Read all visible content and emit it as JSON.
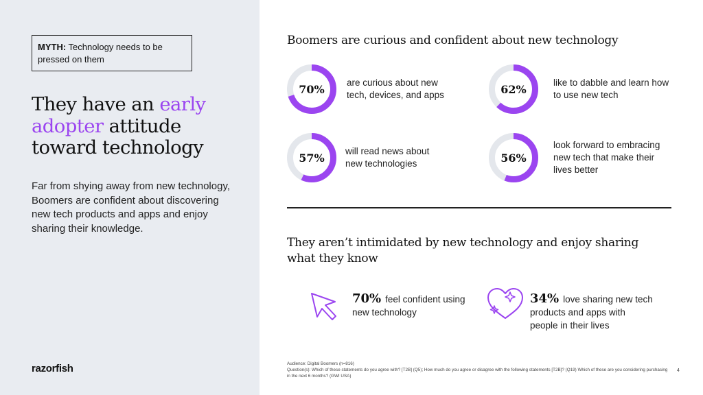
{
  "left_panel": {
    "myth_label": "MYTH:",
    "myth_text": " Technology needs to be pressed on them",
    "headline_part1": "They have an ",
    "headline_accent": "early adopter",
    "headline_part2": " attitude toward technology",
    "body": "Far from shying away from new technology, Boomers are confident about discovering new tech products and apps and enjoy sharing their knowledge.",
    "logo": "razorfish"
  },
  "section1": {
    "title": "Boomers are curious and confident about new technology",
    "stats": [
      {
        "value": 70,
        "label": "70%",
        "text": "are curious about new tech, devices, and apps"
      },
      {
        "value": 62,
        "label": "62%",
        "text": "like to dabble and learn how to use new tech"
      },
      {
        "value": 57,
        "label": "57%",
        "text": "will read news about new technologies"
      },
      {
        "value": 56,
        "label": "56%",
        "text": "look forward to embracing new tech that make their lives better"
      }
    ]
  },
  "section2": {
    "title": "They aren’t intimidated by new technology and enjoy sharing what they know",
    "items": [
      {
        "icon": "cursor-arrow-icon",
        "pct": "70%",
        "text": "feel confident using new technology"
      },
      {
        "icon": "sparkle-heart-icon",
        "pct": "34%",
        "text": "love sharing new tech products and apps with people in their lives"
      }
    ]
  },
  "footnote": {
    "audience": "Audience: Digital Boomers (n=816)",
    "questions": "Question(s): Which of these statements do you agree with? [T2B] (Q5); How much do you agree or disagree with the following statements [T2B]? (Q19) Which of these are you considering purchasing in the next 6 months? (GWI USA)"
  },
  "page_number": "4",
  "colors": {
    "accent": "#9b45f0",
    "ring_track": "#e4e7ec",
    "left_bg": "#e9ecf1"
  }
}
